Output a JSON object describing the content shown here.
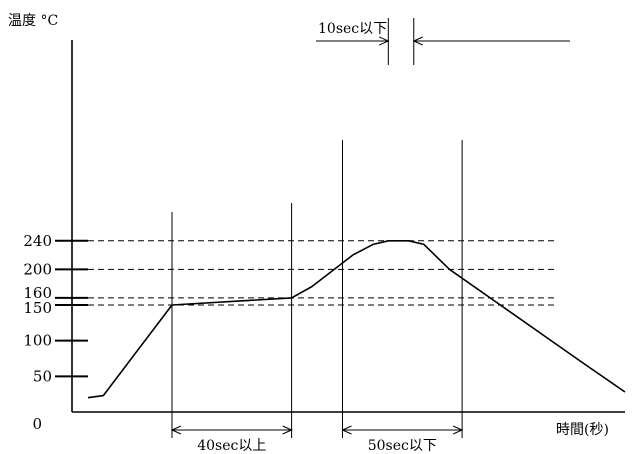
{
  "chart_data": {
    "type": "line",
    "title": "",
    "ylabel": "温度 °C",
    "xlabel": "時間(秒)",
    "ylim": [
      0,
      260
    ],
    "yticks": [
      {
        "value": 0,
        "label": "0"
      },
      {
        "value": 50,
        "label": "50"
      },
      {
        "value": 100,
        "label": "100"
      },
      {
        "value": 150,
        "label": "150"
      },
      {
        "value": 160,
        "label": "160"
      },
      {
        "value": 200,
        "label": "200"
      },
      {
        "value": 240,
        "label": "240"
      }
    ],
    "reference_lines": [
      150,
      160,
      200,
      240
    ],
    "series": [
      {
        "values": [
          {
            "x": 0,
            "y": 20
          },
          {
            "x": 6,
            "y": 23
          },
          {
            "x": 33,
            "y": 150
          },
          {
            "x": 80,
            "y": 160
          },
          {
            "x": 88,
            "y": 176
          },
          {
            "x": 104,
            "y": 220
          },
          {
            "x": 112,
            "y": 235
          },
          {
            "x": 118,
            "y": 240
          },
          {
            "x": 126,
            "y": 240
          },
          {
            "x": 132,
            "y": 235
          },
          {
            "x": 142,
            "y": 200
          },
          {
            "x": 162,
            "y": 150
          },
          {
            "x": 180,
            "y": 105
          },
          {
            "x": 196,
            "y": 65
          },
          {
            "x": 211,
            "y": 28
          }
        ]
      }
    ],
    "annotations": [
      {
        "label": "40sec以上",
        "x_start": 33,
        "x_end": 80,
        "placement": "bottom"
      },
      {
        "label": "50sec以下",
        "x_start": 100,
        "x_end": 147,
        "placement": "bottom"
      },
      {
        "label": "10sec以下",
        "x_start": 118,
        "x_end": 128,
        "placement": "top"
      }
    ]
  }
}
